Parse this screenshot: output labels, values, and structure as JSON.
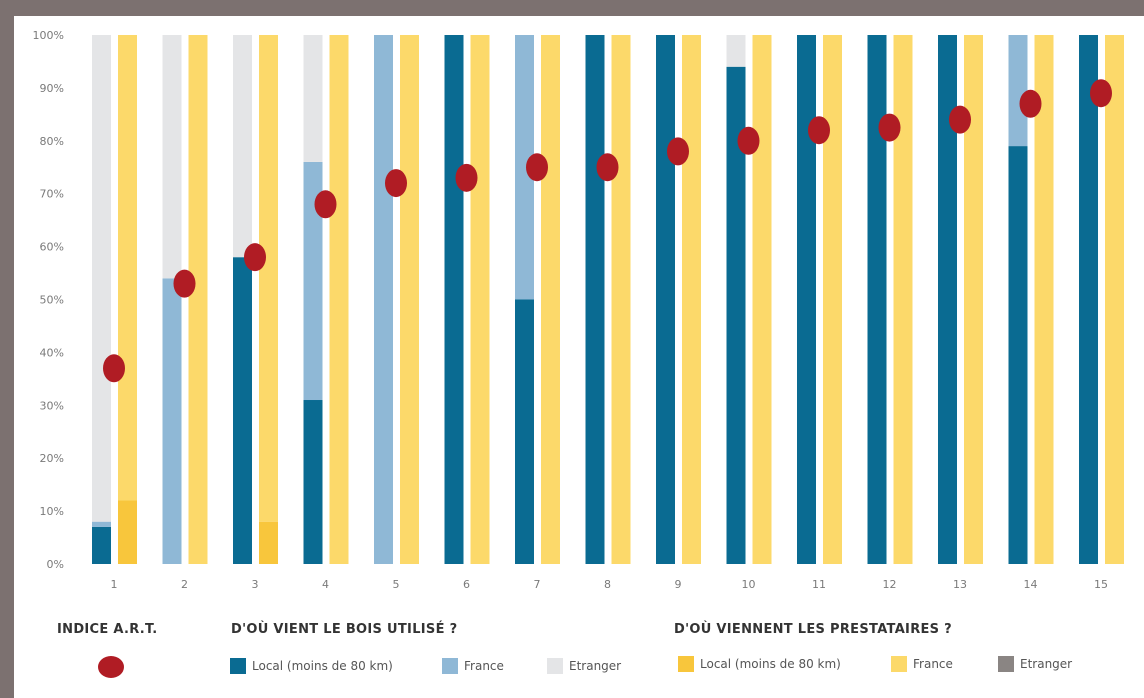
{
  "chart_data": {
    "type": "bar",
    "categories": [
      "1",
      "2",
      "3",
      "4",
      "5",
      "6",
      "7",
      "8",
      "9",
      "10",
      "11",
      "12",
      "13",
      "14",
      "15"
    ],
    "ylim": [
      0,
      100
    ],
    "yticks": [
      "0%",
      "10%",
      "20%",
      "30%",
      "40%",
      "50%",
      "60%",
      "70%",
      "80%",
      "90%",
      "100%"
    ],
    "grid": false,
    "groups": [
      {
        "name": "D'OÙ VIENT LE BOIS UTILISÉ ?",
        "stacked": true,
        "series": [
          {
            "name": "Local (moins de 80 km)",
            "color": "#0a6b92",
            "values": [
              7,
              0,
              58,
              31,
              0,
              100,
              50,
              100,
              100,
              94,
              100,
              100,
              100,
              79,
              100
            ]
          },
          {
            "name": "France",
            "color": "#8fb8d6",
            "values": [
              1,
              54,
              0,
              45,
              100,
              0,
              50,
              0,
              0,
              0,
              0,
              0,
              0,
              21,
              0
            ]
          },
          {
            "name": "Etranger",
            "color": "#e4e5e7",
            "values": [
              92,
              46,
              42,
              24,
              0,
              0,
              0,
              0,
              0,
              6,
              0,
              0,
              0,
              0,
              0
            ]
          }
        ]
      },
      {
        "name": "D'OÙ VIENNENT LES PRESTATAIRES ?",
        "stacked": true,
        "series": [
          {
            "name": "Local (moins de 80 km)",
            "color": "#f8c63c",
            "values": [
              12,
              0,
              8,
              0,
              0,
              0,
              0,
              0,
              0,
              0,
              0,
              0,
              0,
              0,
              0
            ]
          },
          {
            "name": "France",
            "color": "#fcd96a",
            "values": [
              88,
              100,
              92,
              100,
              100,
              100,
              100,
              100,
              100,
              100,
              100,
              100,
              100,
              100,
              100
            ]
          },
          {
            "name": "Etranger",
            "color": "#8a8583",
            "values": [
              0,
              0,
              0,
              0,
              0,
              0,
              0,
              0,
              0,
              0,
              0,
              0,
              0,
              0,
              0
            ]
          }
        ]
      }
    ],
    "indice": {
      "name": "INDICE A.R.T.",
      "color": "#b01c24",
      "values": [
        37,
        53,
        58,
        68,
        72,
        73,
        75,
        75,
        78,
        80,
        82,
        82.5,
        84,
        87,
        89
      ]
    }
  },
  "legend": {
    "indice_title": "INDICE A.R.T.",
    "bois_title": "D'OÙ VIENT LE BOIS UTILISÉ ?",
    "presta_title": "D'OÙ VIENNENT LES PRESTATAIRES ?",
    "bois_items": [
      {
        "label": "Local (moins de 80 km)",
        "color": "#0a6b92"
      },
      {
        "label": "France",
        "color": "#8fb8d6"
      },
      {
        "label": "Etranger",
        "color": "#e4e5e7"
      }
    ],
    "presta_items": [
      {
        "label": "Local (moins de 80 km)",
        "color": "#f8c63c"
      },
      {
        "label": "France",
        "color": "#fcd96a"
      },
      {
        "label": "Etranger",
        "color": "#8a8583"
      }
    ]
  }
}
